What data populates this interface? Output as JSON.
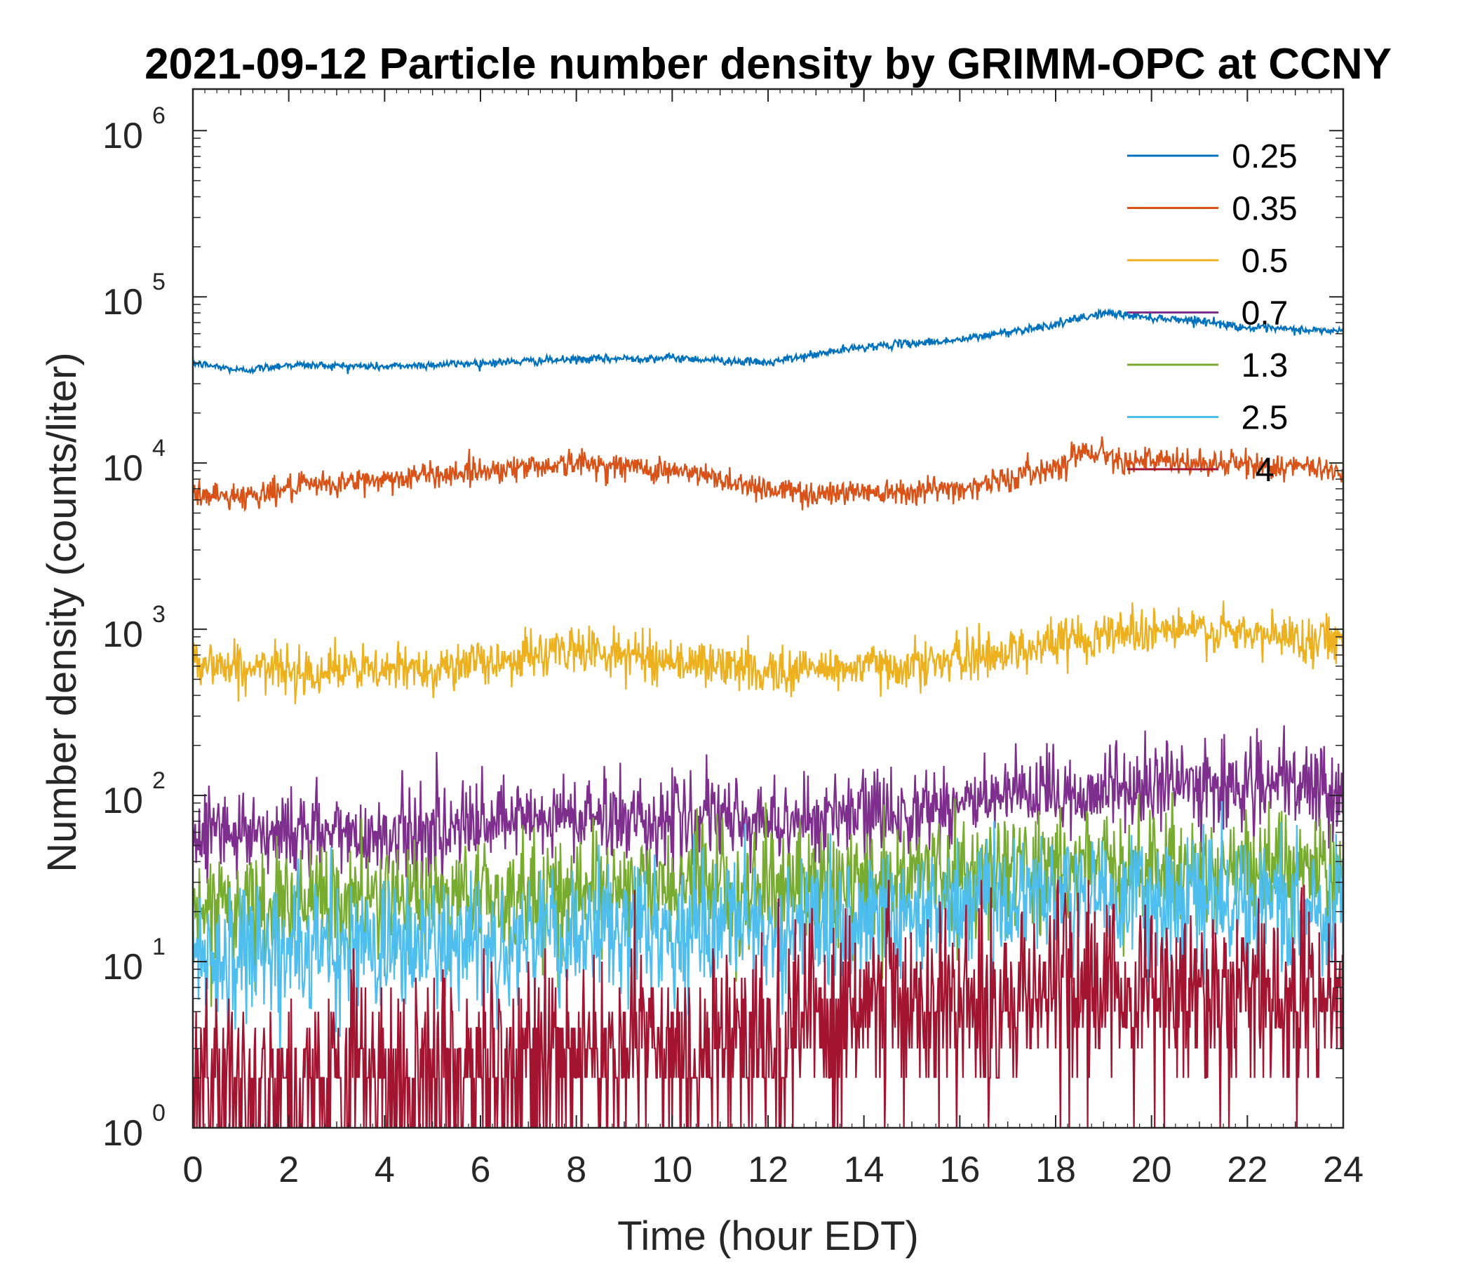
{
  "chart_data": {
    "type": "line",
    "title": "2021-09-12 Particle number density by GRIMM-OPC at CCNY",
    "xlabel": "Time (hour EDT)",
    "ylabel": "Number density (counts/liter)",
    "xlim": [
      0,
      24
    ],
    "ylim_log10": [
      0,
      6.25
    ],
    "yscale": "log",
    "xticks": [
      "0",
      "2",
      "4",
      "6",
      "8",
      "10",
      "12",
      "14",
      "16",
      "18",
      "20",
      "22",
      "24"
    ],
    "yticks": [
      {
        "base": "10",
        "exp": "0"
      },
      {
        "base": "10",
        "exp": "1"
      },
      {
        "base": "10",
        "exp": "2"
      },
      {
        "base": "10",
        "exp": "3"
      },
      {
        "base": "10",
        "exp": "4"
      },
      {
        "base": "10",
        "exp": "5"
      },
      {
        "base": "10",
        "exp": "6"
      }
    ],
    "legend_position": "top-right",
    "series": [
      {
        "name": "0.25",
        "legend": "0.25",
        "color": "#0072BD",
        "noise": 0.012,
        "x": [
          0,
          1,
          2,
          4,
          6,
          8,
          10,
          12,
          14,
          16,
          18,
          19,
          20,
          21,
          22,
          24
        ],
        "y": [
          40000,
          36000,
          39000,
          38000,
          40000,
          42000,
          43000,
          40000,
          50000,
          55000,
          68000,
          80000,
          75000,
          72000,
          65000,
          62000
        ]
      },
      {
        "name": "0.35",
        "legend": "0.35",
        "color": "#D95319",
        "noise": 0.04,
        "x": [
          0,
          1,
          2,
          4,
          6,
          8,
          10,
          12,
          13,
          14,
          16,
          17,
          18,
          18.6,
          19.5,
          20.5,
          22,
          24
        ],
        "y": [
          6500,
          6300,
          7000,
          8000,
          9000,
          10000,
          9000,
          7000,
          6500,
          6800,
          7000,
          8000,
          9500,
          12000,
          10500,
          10000,
          9800,
          9000
        ]
      },
      {
        "name": "0.5",
        "legend": "0.5",
        "color": "#EDB120",
        "noise": 0.07,
        "x": [
          0,
          1,
          2,
          4,
          6,
          8,
          10,
          12,
          13,
          14,
          16,
          17,
          18,
          19,
          20,
          21,
          22,
          24
        ],
        "y": [
          650,
          580,
          570,
          560,
          620,
          760,
          650,
          560,
          580,
          590,
          650,
          740,
          830,
          950,
          1000,
          980,
          920,
          870
        ]
      },
      {
        "name": "0.7",
        "legend": "0.7",
        "color": "#7E2F8E",
        "noise": 0.13,
        "x": [
          0,
          2,
          4,
          6,
          8,
          10,
          12,
          14,
          16,
          18,
          20,
          22,
          24
        ],
        "y": [
          65,
          60,
          58,
          65,
          75,
          72,
          70,
          75,
          90,
          100,
          115,
          115,
          110
        ]
      },
      {
        "name": "1.3",
        "legend": "1.3",
        "color": "#77AC30",
        "noise": 0.17,
        "x": [
          0,
          2,
          4,
          6,
          8,
          10,
          12,
          14,
          16,
          18,
          20,
          22,
          24
        ],
        "y": [
          20,
          22,
          23,
          25,
          27,
          28,
          28,
          30,
          35,
          38,
          38,
          36,
          35
        ]
      },
      {
        "name": "2.5",
        "legend": "2.5",
        "color": "#4DBEEE",
        "noise": 0.2,
        "x": [
          0,
          2,
          4,
          6,
          8,
          10,
          12,
          14,
          16,
          18,
          20,
          22,
          24
        ],
        "y": [
          11,
          12,
          12,
          13,
          14,
          15,
          15,
          18,
          22,
          25,
          24,
          22,
          20
        ]
      },
      {
        "name": "4",
        "legend": "4",
        "color": "#A2142F",
        "noise": 0.3,
        "x": [
          0,
          2,
          4,
          6,
          8,
          10,
          12,
          13,
          14,
          16,
          18,
          20,
          22,
          24
        ],
        "y": [
          2,
          2,
          2,
          2.2,
          2.5,
          3,
          3.5,
          4,
          5,
          6,
          7,
          7,
          6,
          6
        ]
      }
    ]
  }
}
